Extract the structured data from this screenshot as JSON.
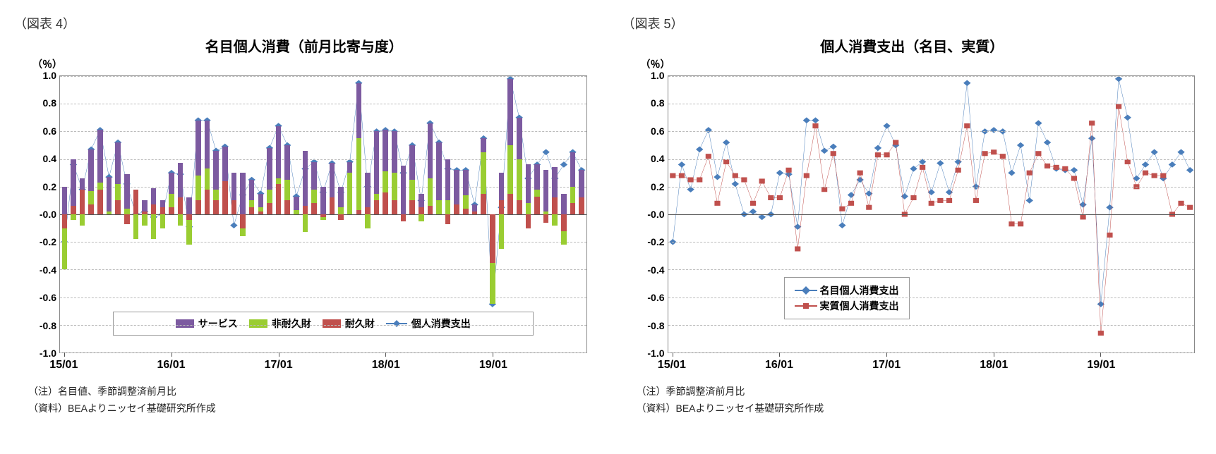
{
  "chart4": {
    "figure_label": "（図表 4）",
    "title": "名目個人消費（前月比寄与度）",
    "unit": "（％）",
    "type": "stacked-bar+line",
    "ylim": [
      -1.0,
      1.0
    ],
    "ytick_step": 0.2,
    "x_ticks": [
      "15/01",
      "16/01",
      "17/01",
      "18/01",
      "19/01"
    ],
    "x_tick_idx": [
      0,
      12,
      24,
      36,
      48
    ],
    "n_points": 59,
    "legend": {
      "services": "サービス",
      "nondurables": "非耐久財",
      "durables": "耐久財",
      "pce_line": "個人消費支出"
    },
    "colors": {
      "services": "#7c5aa0",
      "nondurables": "#9acd32",
      "durables": "#c0504d",
      "line": "#4a7ebb",
      "marker": "#4a7ebb",
      "grid": "#bbbbbb",
      "border": "#888888",
      "background": "#ffffff"
    },
    "series": {
      "services": [
        0.2,
        0.34,
        0.08,
        0.3,
        0.38,
        0.25,
        0.3,
        0.25,
        0.0,
        0.08,
        0.12,
        0.05,
        0.15,
        0.25,
        0.12,
        0.4,
        0.35,
        0.28,
        0.25,
        0.2,
        0.3,
        0.15,
        0.1,
        0.3,
        0.38,
        0.25,
        0.1,
        0.4,
        0.2,
        0.2,
        0.25,
        0.15,
        0.08,
        0.4,
        0.25,
        0.45,
        0.3,
        0.3,
        0.35,
        0.25,
        0.1,
        0.4,
        0.42,
        0.3,
        0.25,
        0.18,
        0.05,
        0.1,
        0.0,
        0.2,
        0.48,
        0.3,
        0.28,
        0.18,
        0.3,
        0.22,
        0.15,
        0.25,
        0.2
      ],
      "nondurables": [
        -0.3,
        -0.04,
        -0.08,
        0.1,
        0.05,
        0.02,
        0.12,
        0.04,
        -0.18,
        -0.08,
        -0.18,
        -0.1,
        0.1,
        -0.08,
        -0.18,
        0.18,
        0.15,
        0.08,
        0.0,
        0.0,
        -0.06,
        0.05,
        0.03,
        0.1,
        0.04,
        0.15,
        0.03,
        -0.13,
        0.1,
        -0.02,
        0.0,
        0.05,
        0.3,
        0.52,
        -0.1,
        0.05,
        0.15,
        0.2,
        0.0,
        0.15,
        -0.05,
        0.2,
        0.1,
        0.1,
        0.0,
        0.1,
        0.0,
        0.3,
        -0.3,
        -0.25,
        0.35,
        0.3,
        0.08,
        0.05,
        0.02,
        -0.08,
        -0.1,
        0.12,
        0.0
      ],
      "durables": [
        -0.1,
        0.06,
        0.18,
        0.07,
        0.18,
        0.0,
        0.1,
        -0.07,
        0.18,
        0.02,
        0.07,
        0.05,
        0.05,
        0.12,
        -0.04,
        0.1,
        0.18,
        0.1,
        0.24,
        0.1,
        -0.1,
        0.05,
        0.02,
        0.08,
        0.22,
        0.1,
        0.0,
        0.06,
        0.08,
        -0.02,
        0.12,
        -0.04,
        0.0,
        0.03,
        0.05,
        0.1,
        0.16,
        0.1,
        -0.05,
        0.1,
        0.05,
        0.06,
        0.0,
        -0.07,
        0.07,
        0.04,
        0.02,
        0.15,
        -0.35,
        0.1,
        0.15,
        0.1,
        -0.1,
        0.13,
        -0.06,
        0.12,
        -0.12,
        0.08,
        0.12
      ],
      "line": [
        -0.2,
        0.36,
        0.18,
        0.47,
        0.61,
        0.27,
        0.52,
        0.22,
        0.0,
        0.02,
        -0.02,
        0.0,
        0.3,
        0.29,
        -0.09,
        0.68,
        0.68,
        0.46,
        0.49,
        -0.08,
        0.14,
        0.25,
        0.15,
        0.48,
        0.64,
        0.5,
        0.13,
        0.33,
        0.38,
        0.16,
        0.37,
        0.16,
        0.38,
        0.95,
        0.2,
        0.6,
        0.61,
        0.6,
        0.3,
        0.5,
        0.1,
        0.66,
        0.52,
        0.33,
        0.32,
        0.32,
        0.07,
        0.55,
        -0.65,
        0.05,
        0.98,
        0.7,
        0.26,
        0.36,
        0.45,
        0.26,
        0.36,
        0.45,
        0.32
      ]
    },
    "note1": "（注）名目値、季節調整済前月比",
    "note2": "（資料）BEAよりニッセイ基礎研究所作成"
  },
  "chart5": {
    "figure_label": "（図表 5）",
    "title": "個人消費支出（名目、実質）",
    "unit": "（％）",
    "type": "line",
    "ylim": [
      -1.0,
      1.0
    ],
    "ytick_step": 0.2,
    "x_ticks": [
      "15/01",
      "16/01",
      "17/01",
      "18/01",
      "19/01"
    ],
    "x_tick_idx": [
      0,
      12,
      24,
      36,
      48
    ],
    "n_points": 59,
    "legend": {
      "nominal": "名目個人消費支出",
      "real": "実質個人消費支出"
    },
    "colors": {
      "nominal": "#4a7ebb",
      "real": "#c0504d",
      "grid": "#bbbbbb",
      "border": "#888888",
      "background": "#ffffff"
    },
    "series": {
      "nominal": [
        -0.2,
        0.36,
        0.18,
        0.47,
        0.61,
        0.27,
        0.52,
        0.22,
        0.0,
        0.02,
        -0.02,
        0.0,
        0.3,
        0.29,
        -0.09,
        0.68,
        0.68,
        0.46,
        0.49,
        -0.08,
        0.14,
        0.25,
        0.15,
        0.48,
        0.64,
        0.5,
        0.13,
        0.33,
        0.38,
        0.16,
        0.37,
        0.16,
        0.38,
        0.95,
        0.2,
        0.6,
        0.61,
        0.6,
        0.3,
        0.5,
        0.1,
        0.66,
        0.52,
        0.33,
        0.32,
        0.32,
        0.07,
        0.55,
        -0.65,
        0.05,
        0.98,
        0.7,
        0.26,
        0.36,
        0.45,
        0.26,
        0.36,
        0.45,
        0.32
      ],
      "real": [
        0.28,
        0.28,
        0.25,
        0.25,
        0.42,
        0.08,
        0.38,
        0.28,
        0.25,
        0.08,
        0.24,
        0.12,
        0.12,
        0.32,
        -0.25,
        0.28,
        0.64,
        0.18,
        0.44,
        0.04,
        0.08,
        0.3,
        0.05,
        0.43,
        0.43,
        0.52,
        0.0,
        0.12,
        0.34,
        0.08,
        0.1,
        0.1,
        0.32,
        0.64,
        0.1,
        0.44,
        0.45,
        0.42,
        -0.07,
        -0.07,
        0.3,
        0.44,
        0.35,
        0.34,
        0.33,
        0.26,
        -0.02,
        0.66,
        -0.86,
        -0.15,
        0.78,
        0.38,
        0.2,
        0.3,
        0.28,
        0.28,
        0.0,
        0.08,
        0.05
      ]
    },
    "note1": "（注）季節調整済前月比",
    "note2": "（資料）BEAよりニッセイ基礎研究所作成"
  }
}
